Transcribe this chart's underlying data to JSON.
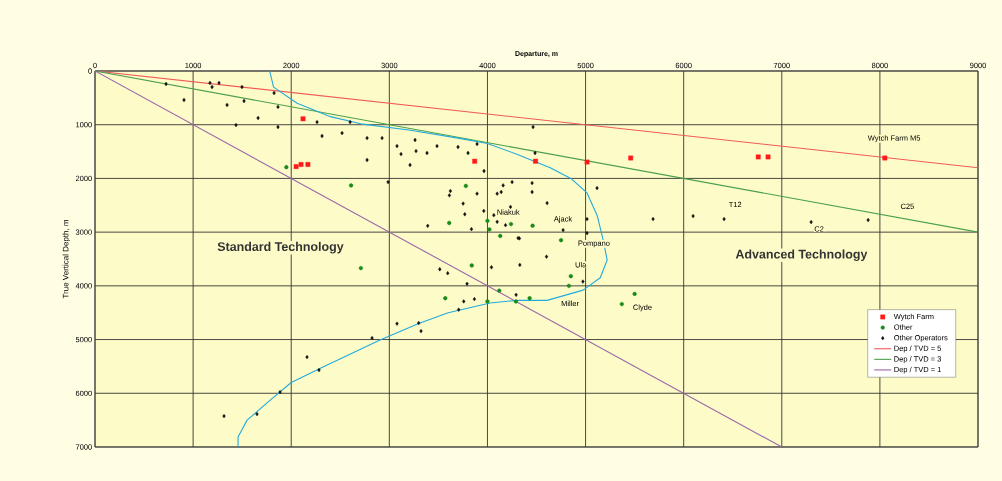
{
  "chart_data": {
    "type": "scatter",
    "xlabel": "Departure, m",
    "ylabel": "True Vertical Depth, m",
    "xlim": [
      0,
      9000
    ],
    "ylim": [
      7000,
      0
    ],
    "xticks": [
      0,
      1000,
      2000,
      3000,
      4000,
      5000,
      6000,
      7000,
      8000,
      9000
    ],
    "yticks": [
      0,
      1000,
      2000,
      3000,
      4000,
      5000,
      6000,
      7000
    ],
    "grid": true,
    "legend": "bottom right",
    "series": [
      {
        "name": "Wytch Farm",
        "marker": "square",
        "color": "#ff1a1a",
        "x": [
          2120,
          2050,
          2100,
          2170,
          3870,
          4490,
          5015,
          5460,
          6760,
          6860,
          8050
        ],
        "values": [
          890,
          1780,
          1740,
          1740,
          1680,
          1680,
          1695,
          1620,
          1600,
          1600,
          1620
        ]
      },
      {
        "name": "Other",
        "marker": "circle",
        "color": "#1a8a1a",
        "x": [
          1950,
          2610,
          3780,
          3610,
          4000,
          4020,
          4130,
          4240,
          4460,
          4750,
          2710,
          3840,
          4850,
          4830,
          4120,
          3570,
          4000,
          4290,
          4430,
          5500,
          5370
        ],
        "values": [
          1790,
          2130,
          2140,
          2830,
          2790,
          2950,
          3070,
          2850,
          2880,
          3150,
          3670,
          3620,
          3820,
          4000,
          4090,
          4230,
          4290,
          4290,
          4230,
          4150,
          4340
        ]
      },
      {
        "name": "Other Operators",
        "marker": "diamond",
        "color": "#111111",
        "x": [
          724,
          907,
          1172,
          1193,
          1264,
          1346,
          1437,
          1498,
          1519,
          1662,
          1825,
          1865,
          1865,
          2263,
          2314,
          2518,
          2600,
          2773,
          2773,
          2926,
          2987,
          3078,
          3119,
          3211,
          3262,
          3272,
          3384,
          3486,
          3700,
          3802,
          3894,
          3965,
          4465,
          4485,
          5117,
          5688,
          6096,
          6412,
          7299,
          7880,
          5015,
          5015,
          4771,
          4608,
          4455,
          4455,
          4251,
          4312,
          3622,
          3612,
          3894,
          4160,
          4099,
          4140,
          3752,
          3769,
          3963,
          4065,
          4099,
          4235,
          4184,
          3391,
          3837,
          4326,
          4602,
          4041,
          4330,
          3514,
          3595,
          3792,
          4973,
          3758,
          3867,
          3707,
          4292,
          3078,
          3299,
          3323,
          2824,
          2161,
          2283,
          1886,
          1651,
          1315
        ],
        "values": [
          242,
          540,
          223,
          298,
          223,
          633,
          1006,
          298,
          559,
          875,
          410,
          670,
          1043,
          950,
          1210,
          1155,
          950,
          1248,
          1657,
          1248,
          2067,
          1397,
          1546,
          1750,
          1285,
          1490,
          1527,
          1397,
          1415,
          1527,
          1359,
          1862,
          1043,
          1527,
          2179,
          2756,
          2700,
          2756,
          2812,
          2775,
          2756,
          3017,
          2961,
          2458,
          2086,
          2253,
          2067,
          3110,
          2235,
          2315,
          2284,
          2130,
          2284,
          2253,
          2469,
          2667,
          2605,
          2685,
          2809,
          2531,
          2870,
          2883,
          2944,
          3117,
          3457,
          3654,
          3611,
          3691,
          3765,
          3963,
          3920,
          4290,
          4247,
          4444,
          4167,
          4704,
          4692,
          4842,
          4972,
          5326,
          5568,
          5978,
          6387,
          6425
        ]
      },
      {
        "name": "Dep / TVD = 5",
        "type": "line",
        "marker": "none",
        "line_style": "solid",
        "color": "#f05a5a",
        "x": [
          0,
          9000
        ],
        "values": [
          0,
          1800
        ]
      },
      {
        "name": "Dep / TVD = 3",
        "type": "line",
        "marker": "none",
        "line_style": "solid",
        "color": "#4a9f4a",
        "x": [
          0,
          9000
        ],
        "values": [
          0,
          3000
        ]
      },
      {
        "name": "Dep / TVD = 1",
        "type": "line",
        "marker": "none",
        "line_style": "solid",
        "color": "#9966aa",
        "x": [
          0,
          7000
        ],
        "values": [
          0,
          7000
        ]
      },
      {
        "type": "line",
        "marker": "none",
        "line_style": "solid",
        "color": "#22aadd",
        "x": [
          1780,
          1820,
          2060,
          2400,
          2730,
          3200,
          3700,
          4000,
          4300,
          4640,
          4850,
          5015,
          5120,
          5180,
          5220,
          5150,
          4975,
          4608,
          4300,
          4027,
          3600,
          3300,
          2905,
          2324,
          2000,
          1753,
          1550,
          1458,
          1458
        ],
        "values": [
          0,
          300,
          600,
          850,
          990,
          1100,
          1250,
          1350,
          1550,
          1800,
          2000,
          2270,
          2700,
          3150,
          3520,
          3850,
          4080,
          4270,
          4270,
          4320,
          4500,
          4700,
          5010,
          5510,
          5800,
          6180,
          6500,
          6815,
          7000
        ]
      }
    ],
    "annotations": [
      "Wytch Farm M5",
      "T12",
      "C25",
      "C2",
      "Niakuk",
      "Ajack",
      "Pompano",
      "Ula",
      "Miller",
      "Clyde",
      "Standard Technology",
      "Advanced Technology"
    ]
  }
}
